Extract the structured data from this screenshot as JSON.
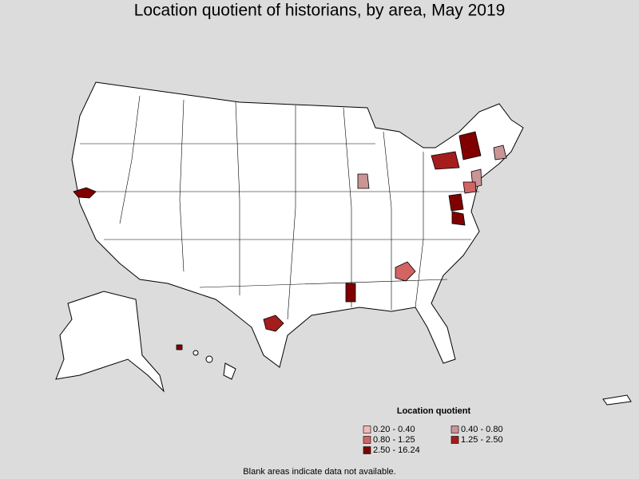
{
  "title": "Location quotient of historians, by area, May 2019",
  "legend": {
    "title": "Location quotient",
    "items": [
      {
        "label": "0.20 - 0.40",
        "color": "#f3b8b8"
      },
      {
        "label": "0.40 - 0.80",
        "color": "#c99595"
      },
      {
        "label": "0.80 - 1.25",
        "color": "#d36464"
      },
      {
        "label": "1.25 - 2.50",
        "color": "#a51c1c"
      },
      {
        "label": "2.50 - 16.24",
        "color": "#800000"
      }
    ]
  },
  "footnote": "Blank areas indicate data not available."
}
